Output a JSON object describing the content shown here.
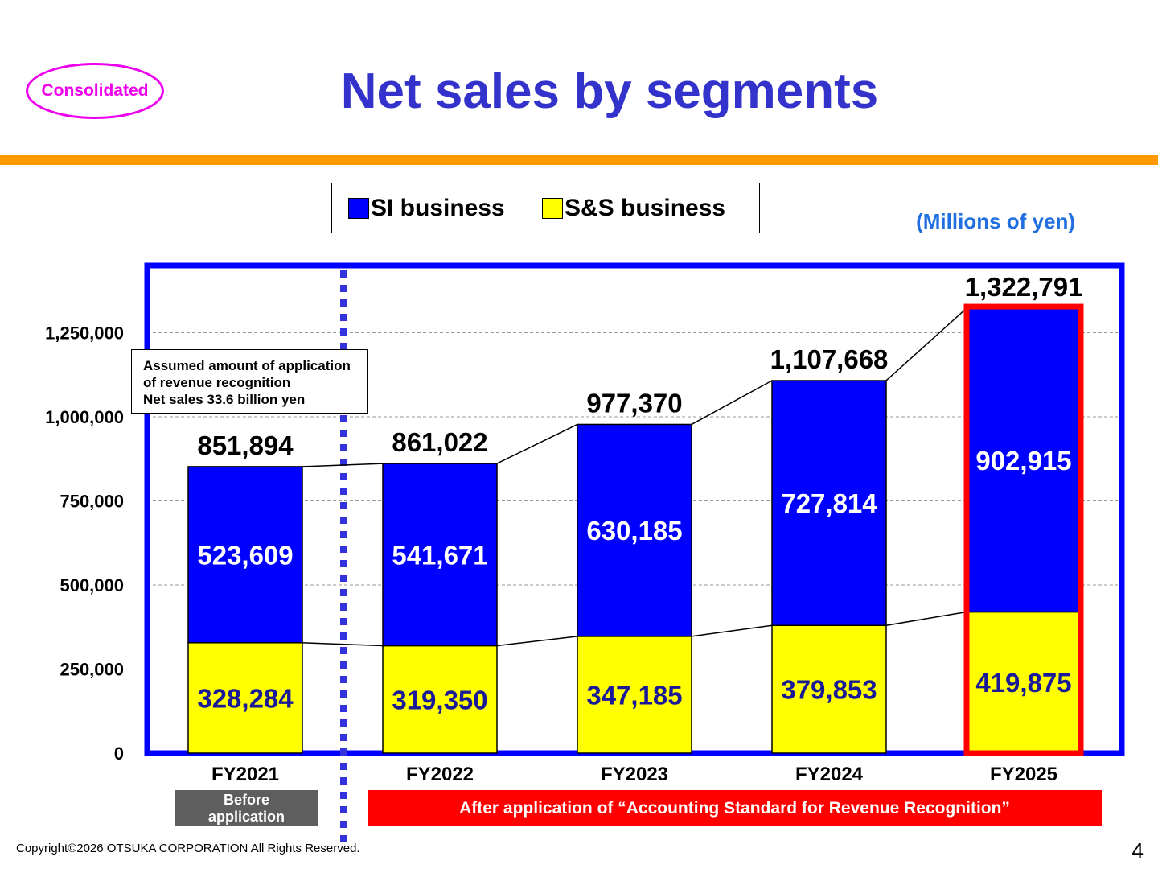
{
  "badge": "Consolidated",
  "title": "Net sales by segments",
  "units": "(Millions of yen)",
  "legend": [
    {
      "label": "SI business",
      "color": "#0000ff"
    },
    {
      "label": "S&S business",
      "color": "#ffff00"
    }
  ],
  "note": {
    "line1": "Assumed amount of application",
    "line2": "of revenue recognition",
    "line3": "Net sales  33.6 billion yen"
  },
  "before_label": "Before application",
  "after_label": "After application of “Accounting Standard for Revenue Recognition”",
  "footer": {
    "copyright": "Copyright©2026 OTSUKA CORPORATION All Rights Reserved.",
    "page": "4"
  },
  "chart_data": {
    "type": "bar",
    "stacked": true,
    "categories": [
      "FY2021",
      "FY2022",
      "FY2023",
      "FY2024",
      "FY2025"
    ],
    "series": [
      {
        "name": "S&S business",
        "color": "#ffff00",
        "values": [
          328284,
          319350,
          347185,
          379853,
          419875
        ],
        "labels": [
          "328,284",
          "319,350",
          "347,185",
          "379,853",
          "419,875"
        ]
      },
      {
        "name": "SI business",
        "color": "#0000ff",
        "values": [
          523609,
          541671,
          630185,
          727814,
          902915
        ],
        "labels": [
          "523,609",
          "541,671",
          "630,185",
          "727,814",
          "902,915"
        ]
      }
    ],
    "totals": [
      851894,
      861022,
      977370,
      1107668,
      1322791
    ],
    "total_labels": [
      "851,894",
      "861,022",
      "977,370",
      "1,107,668",
      "1,322,791"
    ],
    "ylim": [
      0,
      1400000
    ],
    "yticks": [
      0,
      250000,
      500000,
      750000,
      1000000,
      1250000
    ],
    "ytick_labels": [
      "0",
      "250,000",
      "500,000",
      "750,000",
      "1,000,000",
      "1,250,000"
    ],
    "grid": true,
    "highlighted_category": "FY2025",
    "title": "Net sales by segments",
    "xlabel": "",
    "ylabel": ""
  }
}
